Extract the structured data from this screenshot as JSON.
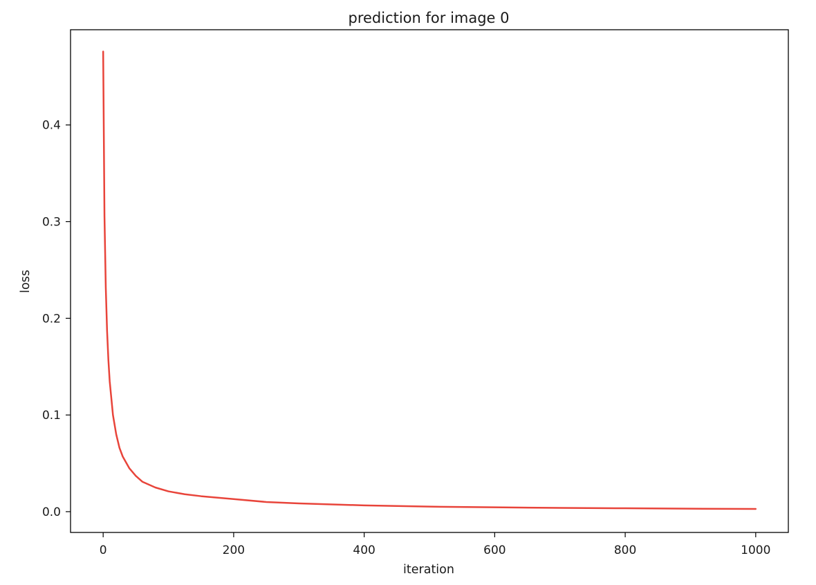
{
  "chart_data": {
    "type": "line",
    "title": "prediction for image 0",
    "xlabel": "iteration",
    "ylabel": "loss",
    "xlim": [
      -50,
      1050
    ],
    "ylim": [
      -0.0215,
      0.4985
    ],
    "x_ticks": [
      0,
      200,
      400,
      600,
      800,
      1000
    ],
    "x_tick_labels": [
      "0",
      "200",
      "400",
      "600",
      "800",
      "1000"
    ],
    "y_ticks": [
      0.0,
      0.1,
      0.2,
      0.3,
      0.4
    ],
    "y_tick_labels": [
      "0.0",
      "0.1",
      "0.2",
      "0.3",
      "0.4"
    ],
    "grid": false,
    "legend": "none",
    "series": [
      {
        "color": "#e8443a",
        "x": [
          0,
          2,
          4,
          6,
          8,
          10,
          15,
          20,
          25,
          30,
          40,
          50,
          60,
          80,
          100,
          125,
          150,
          200,
          250,
          300,
          400,
          500,
          600,
          700,
          800,
          900,
          1000
        ],
        "y": [
          0.476,
          0.306,
          0.232,
          0.187,
          0.157,
          0.135,
          0.1,
          0.08,
          0.066,
          0.057,
          0.045,
          0.037,
          0.031,
          0.025,
          0.021,
          0.018,
          0.016,
          0.013,
          0.01,
          0.0085,
          0.0065,
          0.0052,
          0.0045,
          0.0039,
          0.0035,
          0.0031,
          0.0028
        ]
      }
    ]
  }
}
